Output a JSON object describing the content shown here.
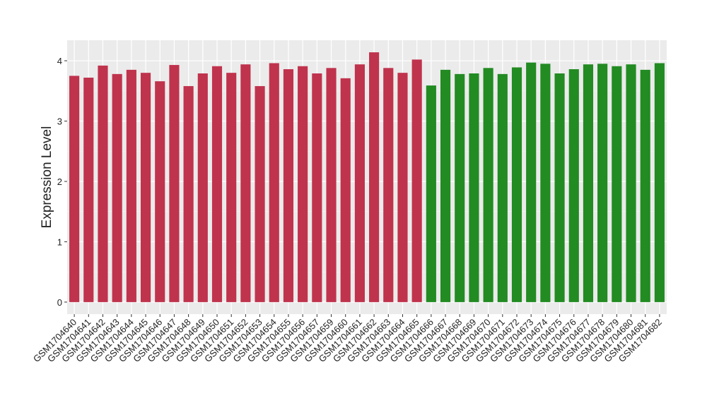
{
  "chart_data": {
    "type": "bar",
    "y_label": "Expression Level",
    "categories": [
      "GSM1704640",
      "GSM1704641",
      "GSM1704642",
      "GSM1704643",
      "GSM1704644",
      "GSM1704645",
      "GSM1704646",
      "GSM1704647",
      "GSM1704648",
      "GSM1704649",
      "GSM1704650",
      "GSM1704651",
      "GSM1704652",
      "GSM1704653",
      "GSM1704654",
      "GSM1704655",
      "GSM1704656",
      "GSM1704657",
      "GSM1704659",
      "GSM1704660",
      "GSM1704661",
      "GSM1704662",
      "GSM1704663",
      "GSM1704664",
      "GSM1704665",
      "GSM1704666",
      "GSM1704667",
      "GSM1704668",
      "GSM1704669",
      "GSM1704670",
      "GSM1704671",
      "GSM1704672",
      "GSM1704673",
      "GSM1704674",
      "GSM1704675",
      "GSM1704676",
      "GSM1704677",
      "GSM1704678",
      "GSM1704679",
      "GSM1704680",
      "GSM1704681",
      "GSM1704682"
    ],
    "values": [
      3.75,
      3.72,
      3.92,
      3.78,
      3.85,
      3.8,
      3.66,
      3.93,
      3.58,
      3.79,
      3.91,
      3.8,
      3.94,
      3.58,
      3.96,
      3.86,
      3.91,
      3.79,
      3.88,
      3.71,
      3.94,
      4.14,
      3.88,
      3.8,
      4.02,
      3.59,
      3.85,
      3.78,
      3.79,
      3.88,
      3.78,
      3.89,
      3.97,
      3.95,
      3.79,
      3.86,
      3.94,
      3.95,
      3.91,
      3.94,
      3.85,
      3.96
    ],
    "colors": [
      "#c0334d",
      "#c0334d",
      "#c0334d",
      "#c0334d",
      "#c0334d",
      "#c0334d",
      "#c0334d",
      "#c0334d",
      "#c0334d",
      "#c0334d",
      "#c0334d",
      "#c0334d",
      "#c0334d",
      "#c0334d",
      "#c0334d",
      "#c0334d",
      "#c0334d",
      "#c0334d",
      "#c0334d",
      "#c0334d",
      "#c0334d",
      "#c0334d",
      "#c0334d",
      "#c0334d",
      "#c0334d",
      "#228b22",
      "#228b22",
      "#228b22",
      "#228b22",
      "#228b22",
      "#228b22",
      "#228b22",
      "#228b22",
      "#228b22",
      "#228b22",
      "#228b22",
      "#228b22",
      "#228b22",
      "#228b22",
      "#228b22",
      "#228b22",
      "#228b22"
    ],
    "ylim": [
      -0.2,
      4.34
    ],
    "yticks": [
      0,
      1,
      2,
      3,
      4
    ],
    "grid": true
  }
}
